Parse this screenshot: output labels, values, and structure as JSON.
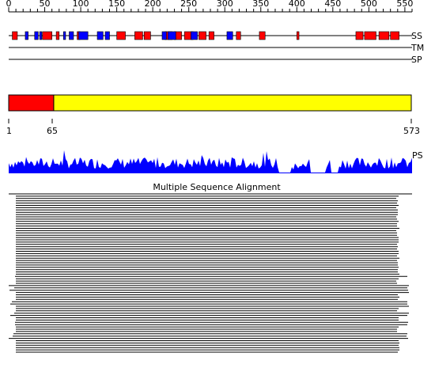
{
  "ruler": {
    "ticks": [
      "0",
      "50",
      "100",
      "150",
      "200",
      "250",
      "300",
      "350",
      "400",
      "450",
      "500",
      "550"
    ],
    "range": [
      0,
      560
    ]
  },
  "tracks": {
    "ss_label": "SS",
    "tm_label": "TM",
    "sp_label": "SP",
    "ps_label": "PS"
  },
  "secondary_structure": {
    "helix_color": "#ff0000",
    "strand_color": "#0000ff",
    "helices": [
      [
        5,
        12
      ],
      [
        47,
        60
      ],
      [
        66,
        70
      ],
      [
        95,
        99
      ],
      [
        150,
        162
      ],
      [
        175,
        186
      ],
      [
        188,
        197
      ],
      [
        217,
        227
      ],
      [
        230,
        240
      ],
      [
        244,
        256
      ],
      [
        264,
        274
      ],
      [
        278,
        285
      ],
      [
        316,
        322
      ],
      [
        348,
        356
      ],
      [
        400,
        403
      ],
      [
        482,
        492
      ],
      [
        494,
        510
      ],
      [
        514,
        528
      ],
      [
        530,
        542
      ]
    ],
    "strands": [
      [
        23,
        27
      ],
      [
        36,
        41
      ],
      [
        43,
        46
      ],
      [
        76,
        79
      ],
      [
        84,
        90
      ],
      [
        97,
        110
      ],
      [
        123,
        131
      ],
      [
        134,
        140
      ],
      [
        213,
        219
      ],
      [
        221,
        232
      ],
      [
        253,
        262
      ],
      [
        303,
        311
      ]
    ]
  },
  "domains": {
    "border_color": "#000000",
    "segments": [
      {
        "start": 1,
        "end": 65,
        "color": "#ff0000"
      },
      {
        "start": 65,
        "end": 573,
        "color": "#ffff00"
      }
    ],
    "labels": [
      "1",
      "65",
      "573"
    ]
  },
  "conservation": {
    "color": "#0000ff"
  },
  "msa": {
    "title": "Multiple Sequence Alignment"
  }
}
